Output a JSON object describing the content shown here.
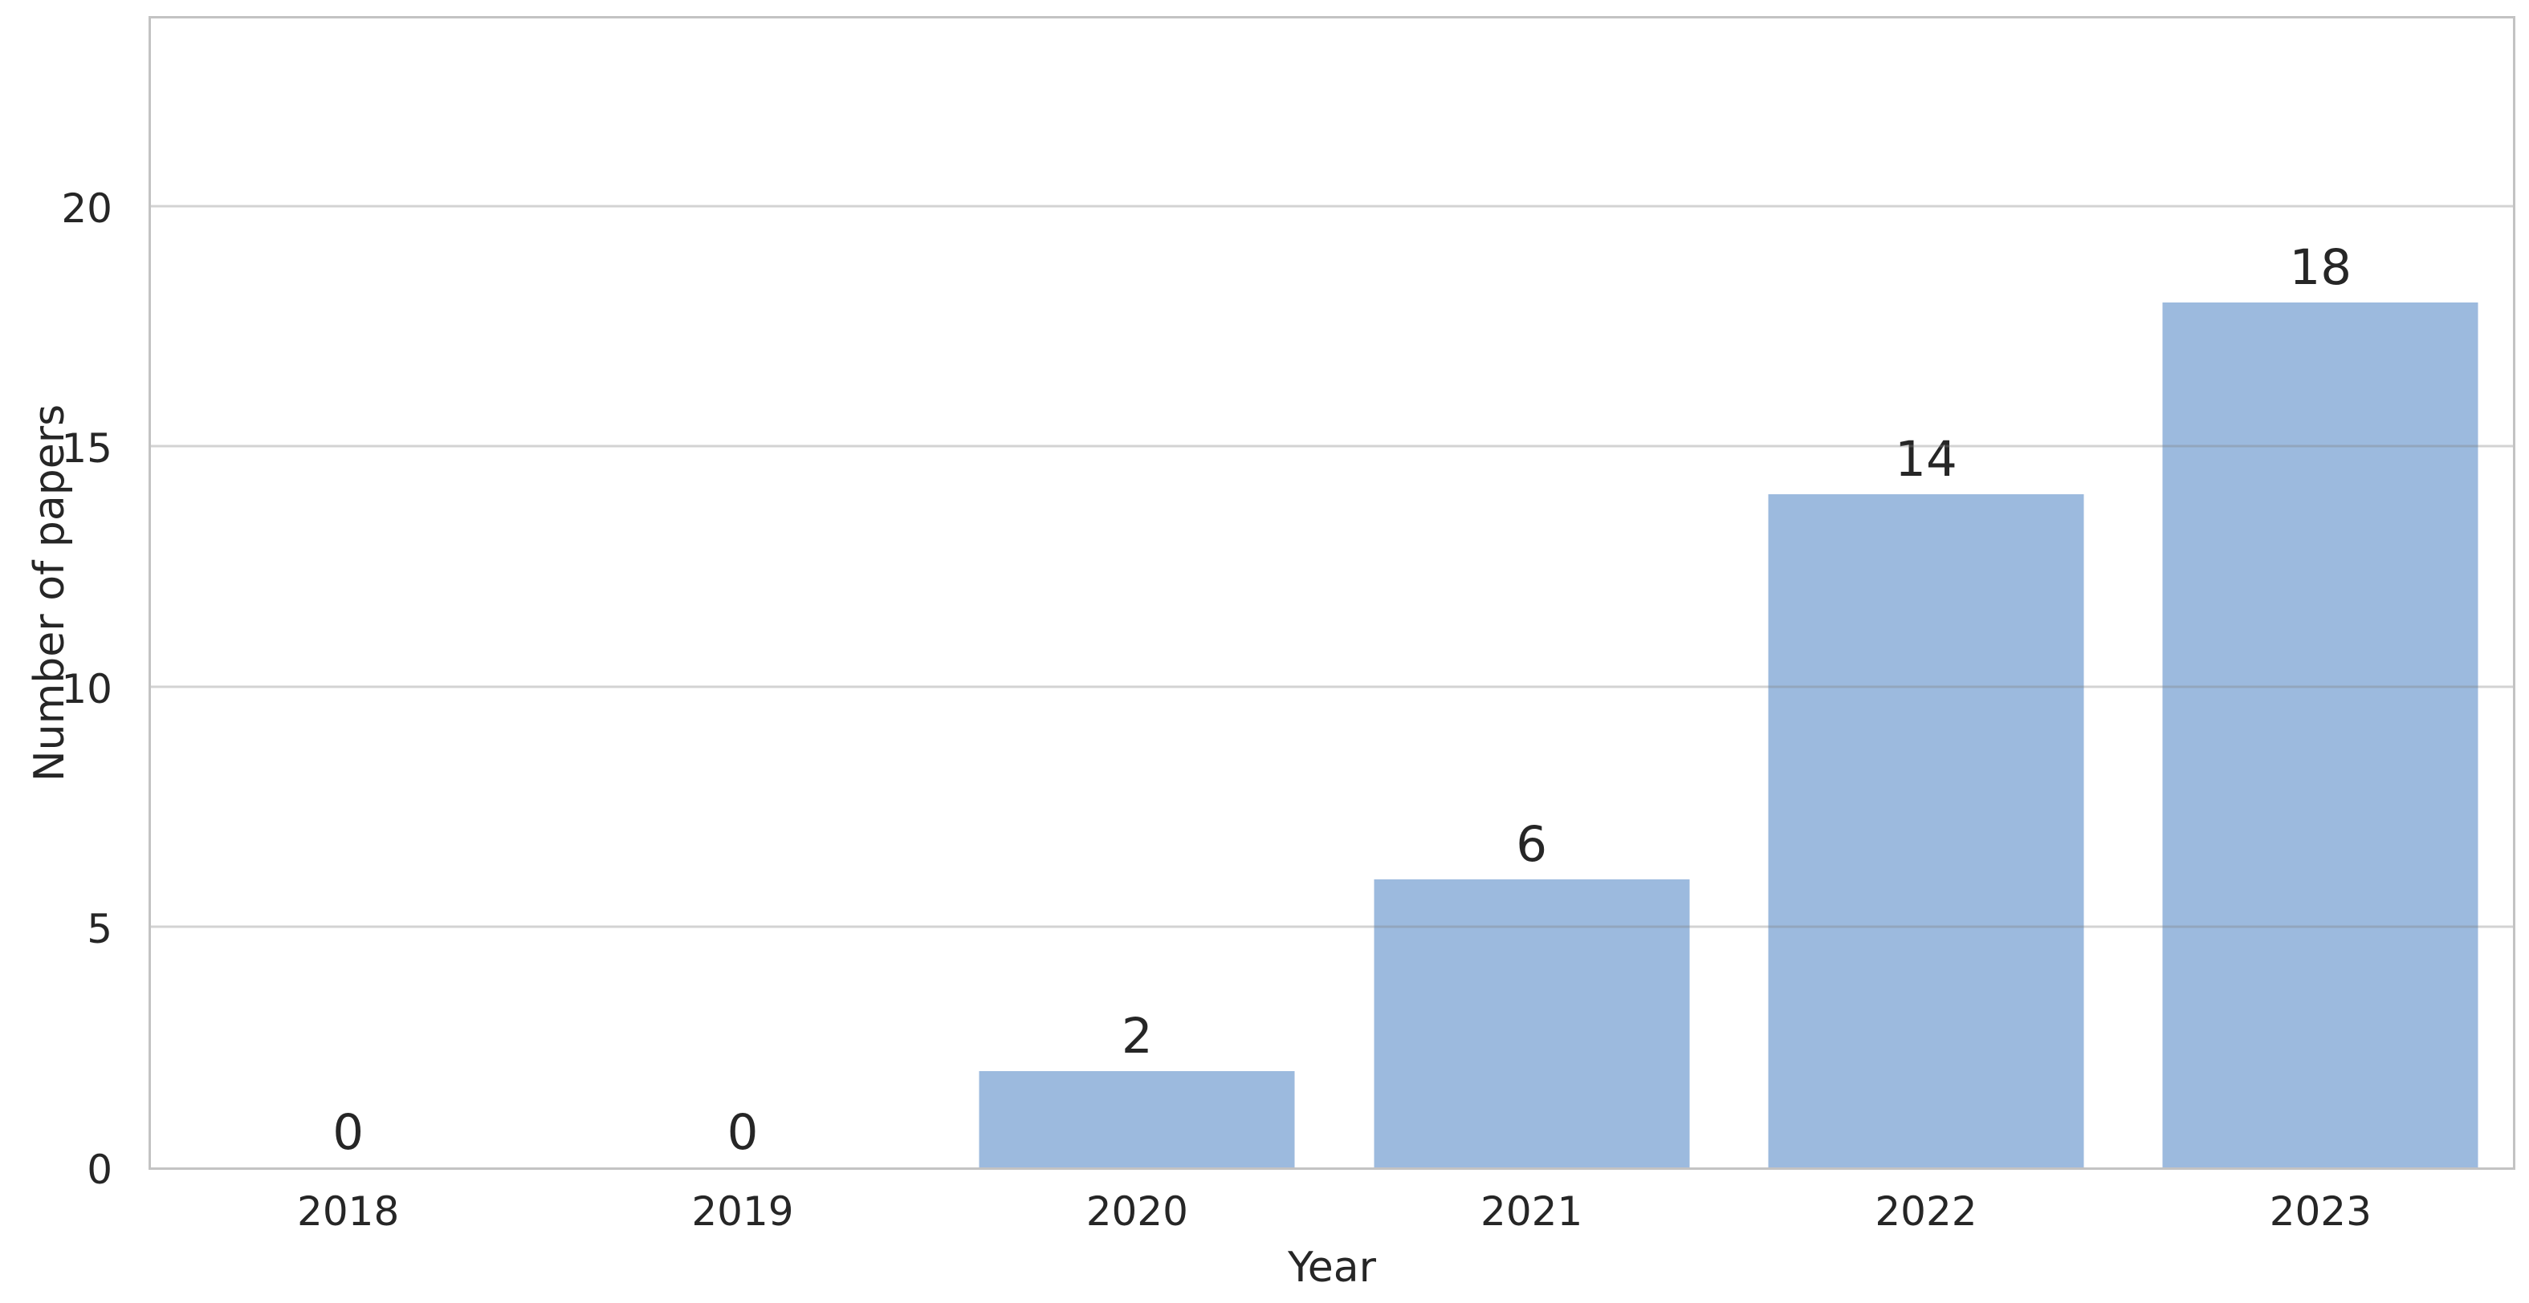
{
  "chart_data": {
    "type": "bar",
    "title": "",
    "xlabel": "Year",
    "ylabel": "Number of papers",
    "categories": [
      "2018",
      "2019",
      "2020",
      "2021",
      "2022",
      "2023"
    ],
    "values": [
      0,
      0,
      2,
      6,
      14,
      18
    ],
    "bar_value_labels": [
      "0",
      "0",
      "2",
      "6",
      "14",
      "18"
    ],
    "yticks": [
      0,
      5,
      10,
      15,
      20
    ],
    "ylim": [
      0,
      24
    ],
    "grid": "horizontal",
    "legend": "none",
    "colors": {
      "bar_fill": "#9cbade",
      "gridline_rgba": "rgba(128,128,128,0.35)",
      "spine": "#c3c3c3",
      "text": "#262626",
      "background": "#ffffff"
    }
  }
}
